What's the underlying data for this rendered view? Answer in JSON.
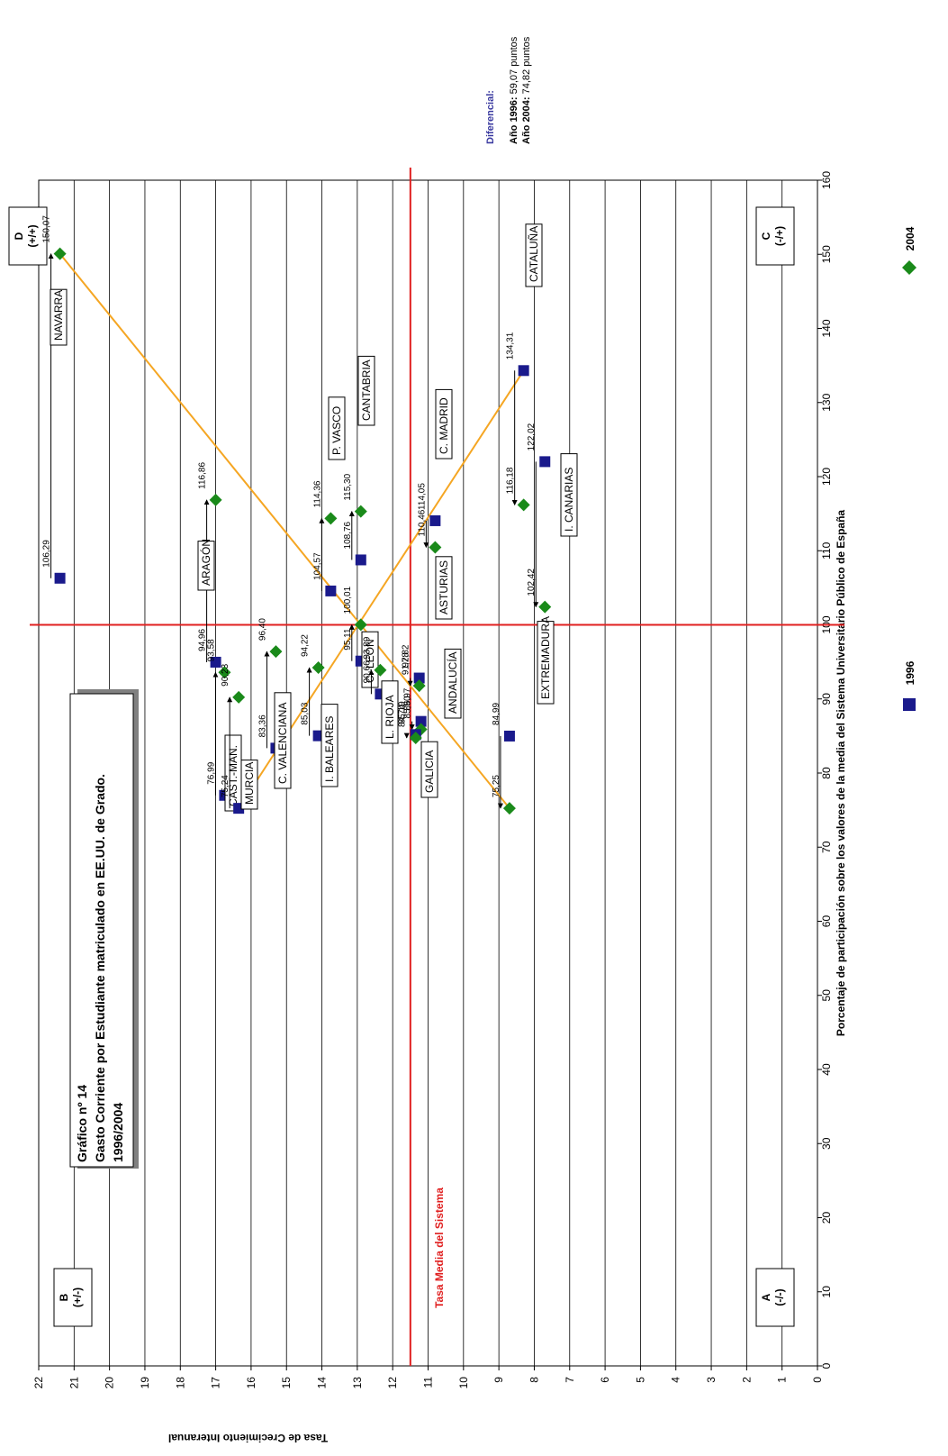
{
  "chart_data": {
    "type": "scatter",
    "title_lines": [
      "Gráfico nº 14",
      "Gasto Corriente por Estudiante matriculado en EE.UU. de Grado.",
      "1996/2004"
    ],
    "xlabel": "Porcentaje de participación sobre los valores de la media del Sistema Universitario Público de España",
    "ylabel": "Tasa de Crecimiento Interanual",
    "xlim": [
      0,
      160
    ],
    "ylim": [
      0,
      22
    ],
    "x_ticks": [
      "0",
      "10",
      "20",
      "30",
      "40",
      "50",
      "60",
      "70",
      "80",
      "90",
      "100",
      "110",
      "120",
      "130",
      "140",
      "150",
      "160"
    ],
    "y_ticks": [
      "0",
      "1",
      "2",
      "3",
      "4",
      "5",
      "6",
      "7",
      "8",
      "9",
      "10",
      "11",
      "12",
      "13",
      "14",
      "15",
      "16",
      "17",
      "18",
      "19",
      "20",
      "21",
      "22"
    ],
    "grid": "horizontal",
    "rotation": "chart rotated 90° counter-clockwise",
    "reference_lines": {
      "x": 100,
      "y": 11.5,
      "y_label": "Tasa Media del Sistema"
    },
    "quadrants": [
      {
        "line1": "A",
        "line2": "(-/-)"
      },
      {
        "line1": "B",
        "line2": "(+/-)"
      },
      {
        "line1": "C",
        "line2": "(-/+)"
      },
      {
        "line1": "D",
        "line2": "(+/+)"
      }
    ],
    "legend": {
      "placement": "bottom-right",
      "entries": [
        {
          "name": "1996",
          "marker": "square",
          "color": "#1a1a8c"
        },
        {
          "name": "2004",
          "marker": "diamond",
          "color": "#1a8a1a"
        }
      ]
    },
    "diferencial": {
      "heading": "Diferencial:",
      "lines": [
        {
          "bold": "Año 1996:",
          "text": " 59,07 puntos"
        },
        {
          "bold": "Año 2004:",
          "text": " 74,82 puntos"
        }
      ]
    },
    "trend_line_color": "#f5a623",
    "regions": [
      {
        "name": "NAVARRA",
        "y": 21.4,
        "x1996": 106.29,
        "l1996": "106,29",
        "x2004": 150.07,
        "l2004": "150,07"
      },
      {
        "name": "ARAGÓN",
        "y": 17.0,
        "x1996": 94.96,
        "l1996": "94,96",
        "x2004": 116.86,
        "l2004": "116,86"
      },
      {
        "name": "CAST.-MAN.",
        "y": 16.75,
        "x1996": 76.99,
        "l1996": "76,99",
        "x2004": 93.58,
        "l2004": "93,58"
      },
      {
        "name": "MURCIA",
        "y": 16.35,
        "x1996": 75.24,
        "l1996": "75,24",
        "x2004": 90.23,
        "l2004": "90,23"
      },
      {
        "name": "C. VALENCIANA",
        "y": 15.3,
        "x1996": 83.36,
        "l1996": "83,36",
        "x2004": 96.4,
        "l2004": "96,40"
      },
      {
        "name": "I. BALEARES",
        "y": 14.1,
        "x1996": 85.03,
        "l1996": "85,03",
        "x2004": 94.22,
        "l2004": "94,22"
      },
      {
        "name": "P. VASCO",
        "y": 13.75,
        "x1996": 104.57,
        "l1996": "104,57",
        "x2004": 114.36,
        "l2004": "114,36"
      },
      {
        "name": "CANTABRIA",
        "y": 12.9,
        "x1996": 108.76,
        "l1996": "108,76",
        "x2004": 115.3,
        "l2004": "115,30"
      },
      {
        "name": "C.-LEÓN",
        "y": 12.9,
        "x1996": 95.11,
        "l1996": "95,11",
        "x2004": 100.01,
        "l2004": "100,01"
      },
      {
        "name": "L. RIOJA",
        "y": 12.35,
        "x1996": 90.66,
        "l1996": "90,66",
        "x2004": 93.89,
        "l2004": "93,89"
      },
      {
        "name": "ASTURIAS",
        "y": 11.25,
        "x1996": 92.82,
        "l1996": "92,82",
        "x2004": 91.78,
        "l2004": "91,78"
      },
      {
        "name": "ANDALUCÍA",
        "y": 11.2,
        "x1996": 86.97,
        "l1996": "86,97",
        "x2004": 85.9,
        "l2004": "85,90"
      },
      {
        "name": "GALICIA",
        "y": 11.35,
        "x1996": 85.19,
        "l1996": "85,19",
        "x2004": 84.74,
        "l2004": "84,74"
      },
      {
        "name": "C. MADRID",
        "y": 10.8,
        "x1996": 114.05,
        "l1996": "114,05",
        "x2004": 110.46,
        "l2004": "110,46"
      },
      {
        "name": "EXTREMADURA",
        "y": 8.7,
        "x1996": 84.99,
        "l1996": "84,99",
        "x2004": 75.25,
        "l2004": "75,25"
      },
      {
        "name": "CATALUÑA",
        "y": 8.3,
        "x1996": 134.31,
        "l1996": "134,31",
        "x2004": 116.18,
        "l2004": "116,18"
      },
      {
        "name": "I. CANARIAS",
        "y": 7.7,
        "x1996": 122.02,
        "l1996": "122,02",
        "x2004": 102.42,
        "l2004": "102,42"
      }
    ],
    "trend_lines": [
      {
        "from": [
          75.24,
          16.35
        ],
        "to": [
          134.31,
          8.3
        ]
      },
      {
        "from": [
          75.25,
          8.7
        ],
        "to": [
          150.07,
          21.4
        ]
      }
    ]
  }
}
